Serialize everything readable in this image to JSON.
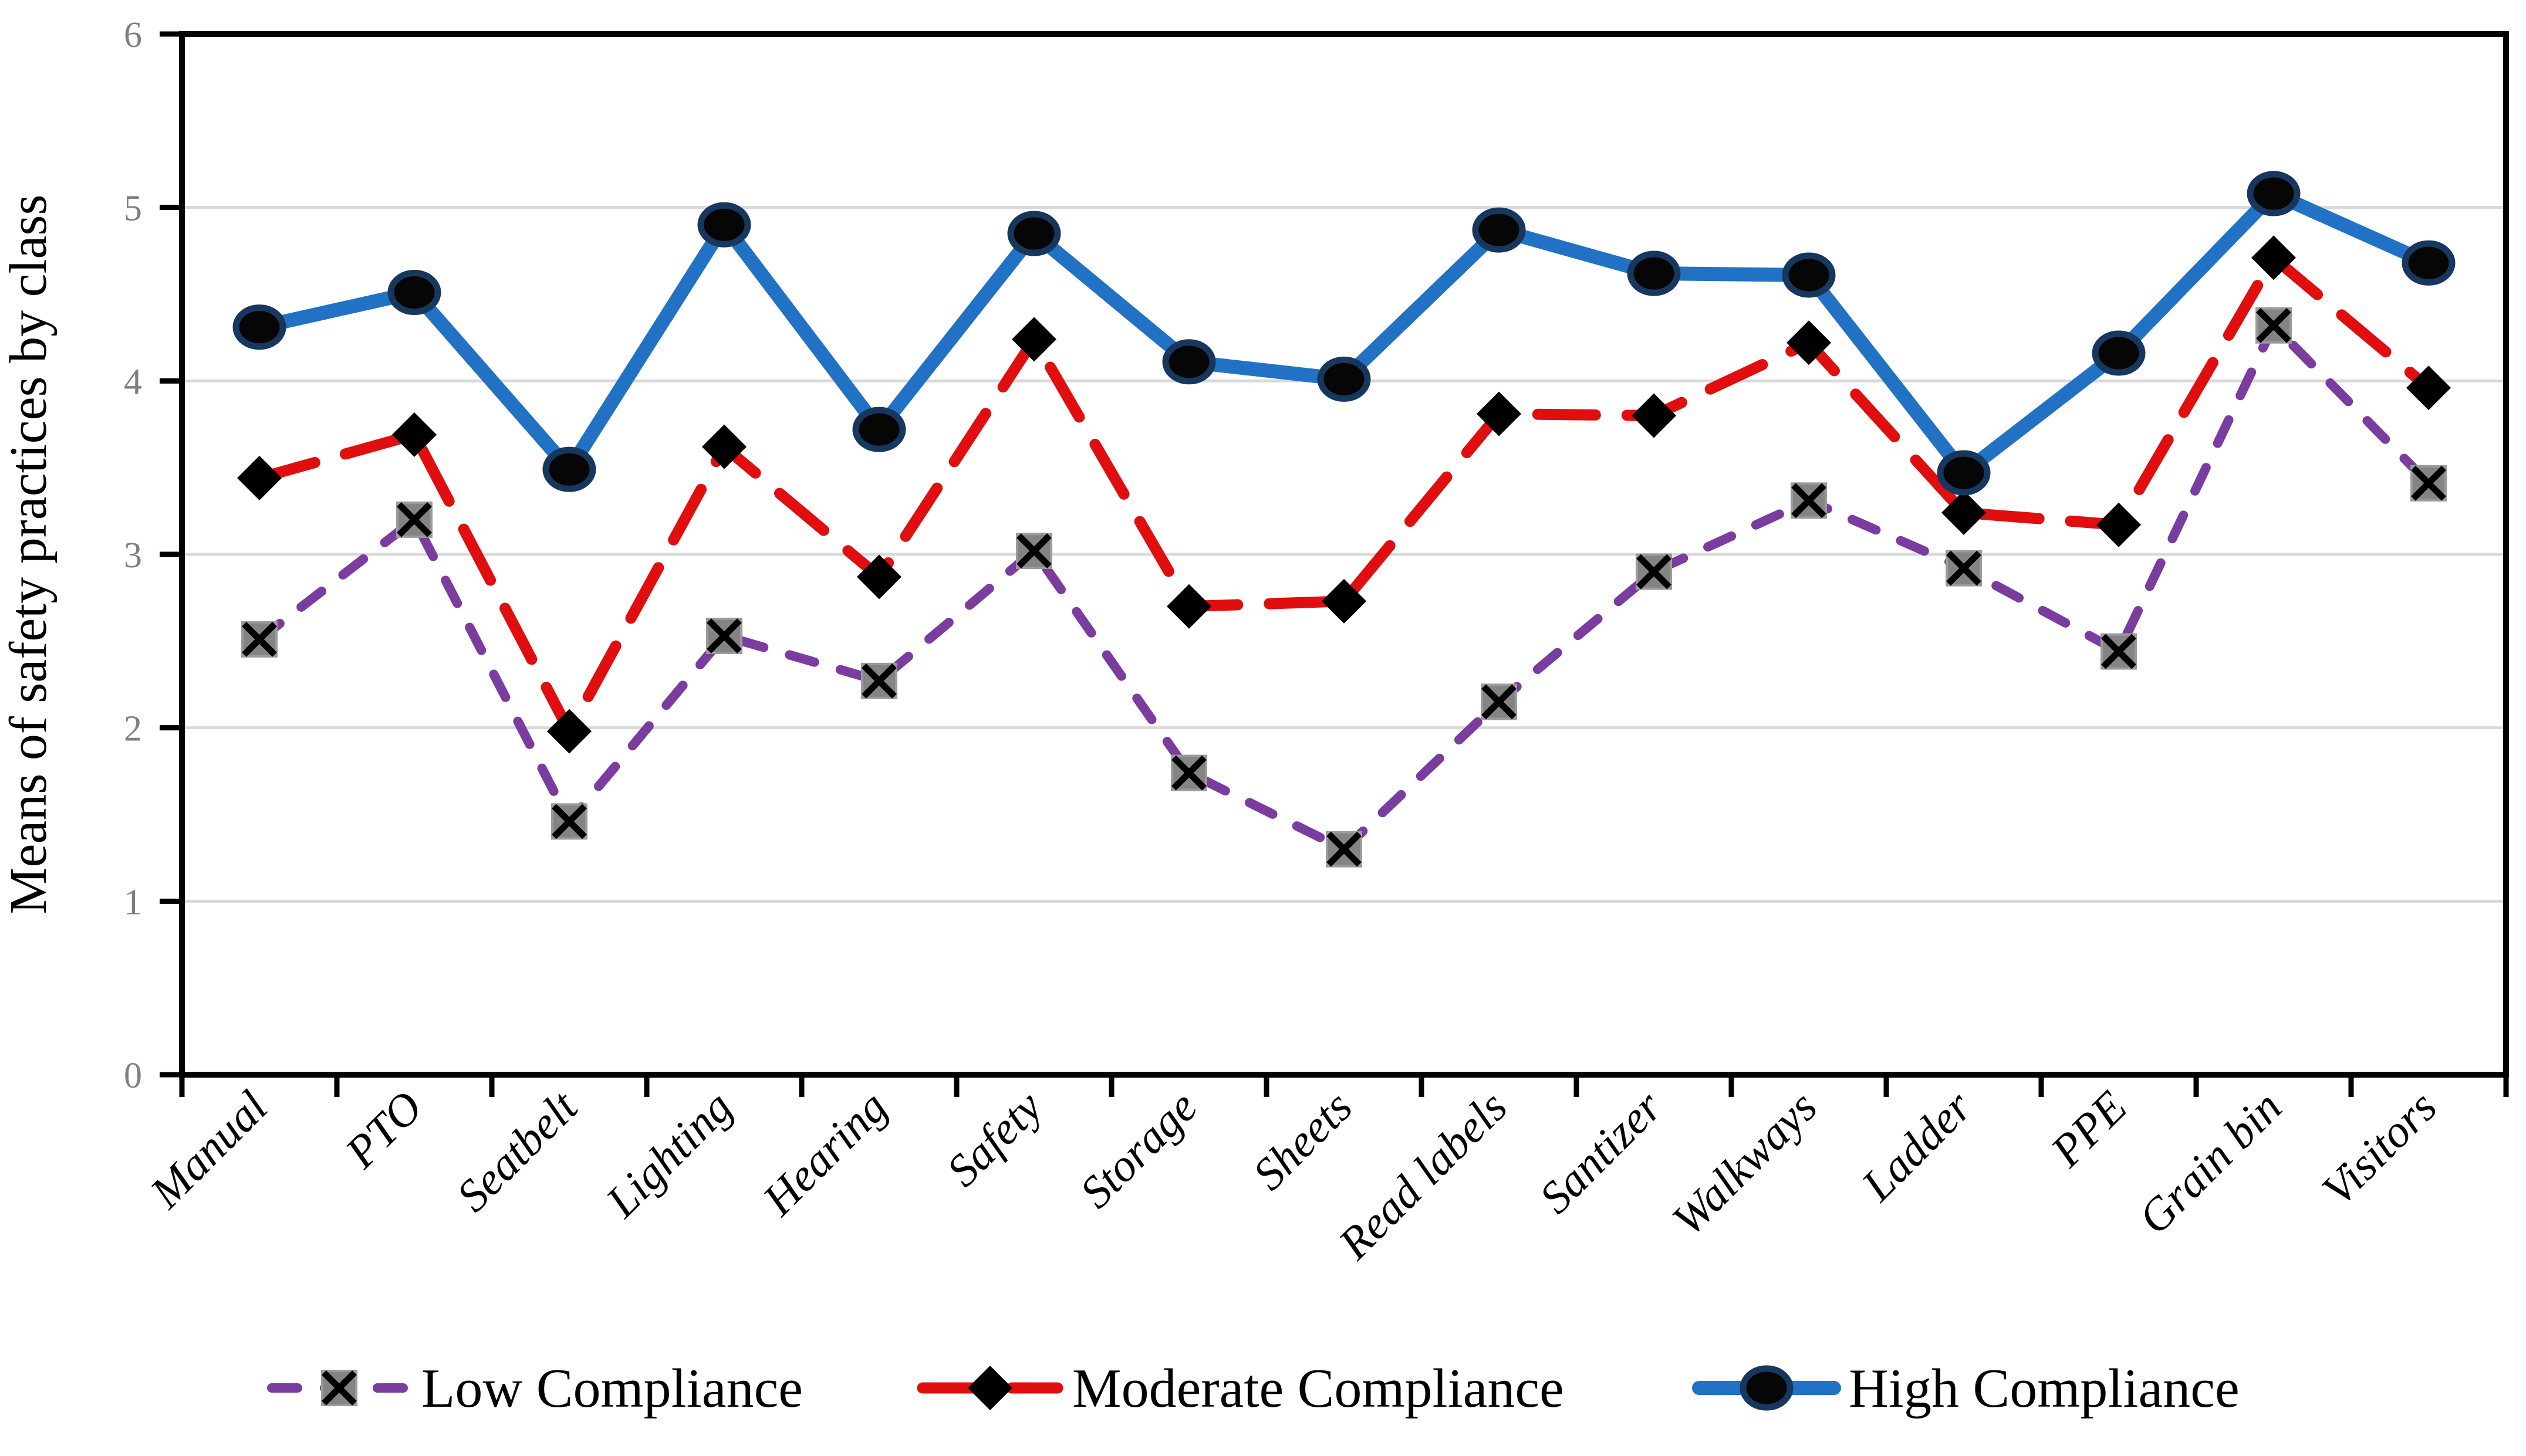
{
  "figure": {
    "kind": "journal-style line chart",
    "background": "#FFFFFF"
  },
  "chart_data": {
    "type": "line",
    "title": "",
    "xlabel": "",
    "ylabel": "Means of safety practices by class",
    "ylim": [
      0,
      6
    ],
    "yticks": [
      0,
      1,
      2,
      3,
      4,
      5,
      6
    ],
    "grid": "horizontal",
    "gridline_color": "#D9D9D9",
    "frame_color": "#000000",
    "axis_tick_label_color": "#7F7F7F",
    "legend_position": "bottom",
    "categories": [
      "Manual",
      "PTO",
      "Seatbelt",
      "Lighting",
      "Hearing",
      "Safety",
      "Storage",
      "Sheets",
      "Read labels",
      "Santizer",
      "Walkways",
      "Ladder",
      "PPE",
      "Grain bin",
      "Visitors"
    ],
    "series": [
      {
        "name": "Low Compliance",
        "color": "#7A3D9F",
        "line_style": "dashed",
        "marker": "square-x-icon",
        "marker_fill": "#848484",
        "marker_detail": "#000000",
        "values": [
          2.51,
          3.2,
          1.46,
          2.53,
          2.27,
          3.02,
          1.74,
          1.3,
          2.15,
          2.9,
          3.31,
          2.92,
          2.44,
          4.32,
          3.41
        ]
      },
      {
        "name": "Moderate Compliance",
        "color": "#E00E0E",
        "line_style": "long-dash",
        "marker": "diamond-icon",
        "marker_fill": "#000000",
        "marker_detail": "#000000",
        "values": [
          3.44,
          3.69,
          1.98,
          3.62,
          2.87,
          4.24,
          2.7,
          2.73,
          3.81,
          3.8,
          4.22,
          3.24,
          3.17,
          4.71,
          3.96
        ]
      },
      {
        "name": "High Compliance",
        "color": "#2172C4",
        "line_style": "solid",
        "marker": "circle-icon",
        "marker_fill": "#060606",
        "marker_detail": "#17375E",
        "values": [
          4.31,
          4.51,
          3.49,
          4.9,
          3.72,
          4.85,
          4.11,
          4.01,
          4.87,
          4.62,
          4.61,
          3.47,
          4.16,
          5.08,
          4.68
        ]
      }
    ]
  }
}
